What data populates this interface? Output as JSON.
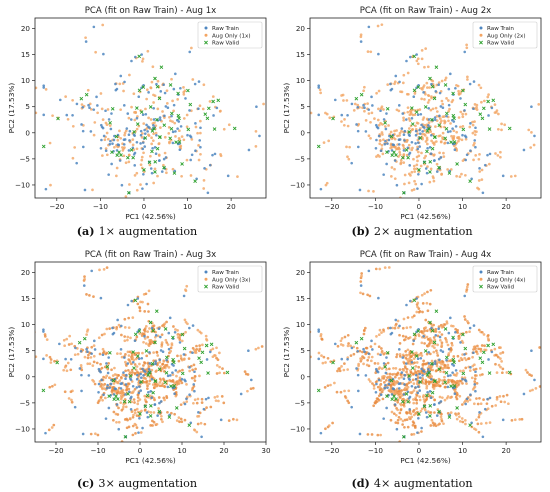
{
  "colors": {
    "raw_train": "#4e86c0",
    "aug_only": "#f3a563",
    "aug_only_dense": "#e88a3c",
    "raw_valid": "#2ca02c"
  },
  "chart_data": [
    {
      "type": "scatter",
      "title": "PCA (fit on Raw Train) - Aug 1x",
      "xlabel": "PC1 (42.56%)",
      "ylabel": "PC2 (17.53%)",
      "xlim": [
        -25,
        28
      ],
      "ylim": [
        -12.5,
        22
      ],
      "xticks": [
        -20,
        -10,
        0,
        10,
        20
      ],
      "yticks": [
        -10,
        -5,
        0,
        5,
        10,
        15,
        20
      ],
      "grid": false,
      "legend_position": "top-right",
      "aug_factor": 1,
      "caption_label": "(a)",
      "caption_text": "1× augmentation",
      "series": [
        {
          "name": "Raw Train",
          "marker": "circle"
        },
        {
          "name": "Aug Only (1x)",
          "marker": "circle"
        },
        {
          "name": "Raw Valid",
          "marker": "x"
        }
      ]
    },
    {
      "type": "scatter",
      "title": "PCA (fit on Raw Train) - Aug 2x",
      "xlabel": "PC1 (42.56%)",
      "ylabel": "PC2 (17.53%)",
      "xlim": [
        -25,
        28
      ],
      "ylim": [
        -12.5,
        22
      ],
      "xticks": [
        -20,
        -10,
        0,
        10,
        20
      ],
      "yticks": [
        -10,
        -5,
        0,
        5,
        10,
        15,
        20
      ],
      "grid": false,
      "legend_position": "top-right",
      "aug_factor": 2,
      "caption_label": "(b)",
      "caption_text": "2× augmentation",
      "series": [
        {
          "name": "Raw Train",
          "marker": "circle"
        },
        {
          "name": "Aug Only (2x)",
          "marker": "circle"
        },
        {
          "name": "Raw Valid",
          "marker": "x"
        }
      ]
    },
    {
      "type": "scatter",
      "title": "PCA (fit on Raw Train) - Aug 3x",
      "xlabel": "PC1 (42.56%)",
      "ylabel": "PC2 (17.53%)",
      "xlim": [
        -25,
        30
      ],
      "ylim": [
        -12.5,
        22
      ],
      "xticks": [
        -20,
        -10,
        0,
        10,
        20,
        30
      ],
      "yticks": [
        -10,
        -5,
        0,
        5,
        10,
        15,
        20
      ],
      "grid": false,
      "legend_position": "top-right",
      "aug_factor": 3,
      "caption_label": "(c)",
      "caption_text": "3× augmentation",
      "series": [
        {
          "name": "Raw Train",
          "marker": "circle"
        },
        {
          "name": "Aug Only (3x)",
          "marker": "circle"
        },
        {
          "name": "Raw Valid",
          "marker": "x"
        }
      ]
    },
    {
      "type": "scatter",
      "title": "PCA (fit on Raw Train) - Aug 4x",
      "xlabel": "PC1 (42.56%)",
      "ylabel": "PC2 (17.53%)",
      "xlim": [
        -25,
        28
      ],
      "ylim": [
        -12.5,
        22
      ],
      "xticks": [
        -20,
        -10,
        0,
        10,
        20
      ],
      "yticks": [
        -10,
        -5,
        0,
        5,
        10,
        15,
        20
      ],
      "grid": false,
      "legend_position": "top-right",
      "aug_factor": 4,
      "caption_label": "(d)",
      "caption_text": "4× augmentation",
      "series": [
        {
          "name": "Raw Train",
          "marker": "circle"
        },
        {
          "name": "Aug Only (4x)",
          "marker": "circle"
        },
        {
          "name": "Raw Valid",
          "marker": "x"
        }
      ]
    }
  ]
}
